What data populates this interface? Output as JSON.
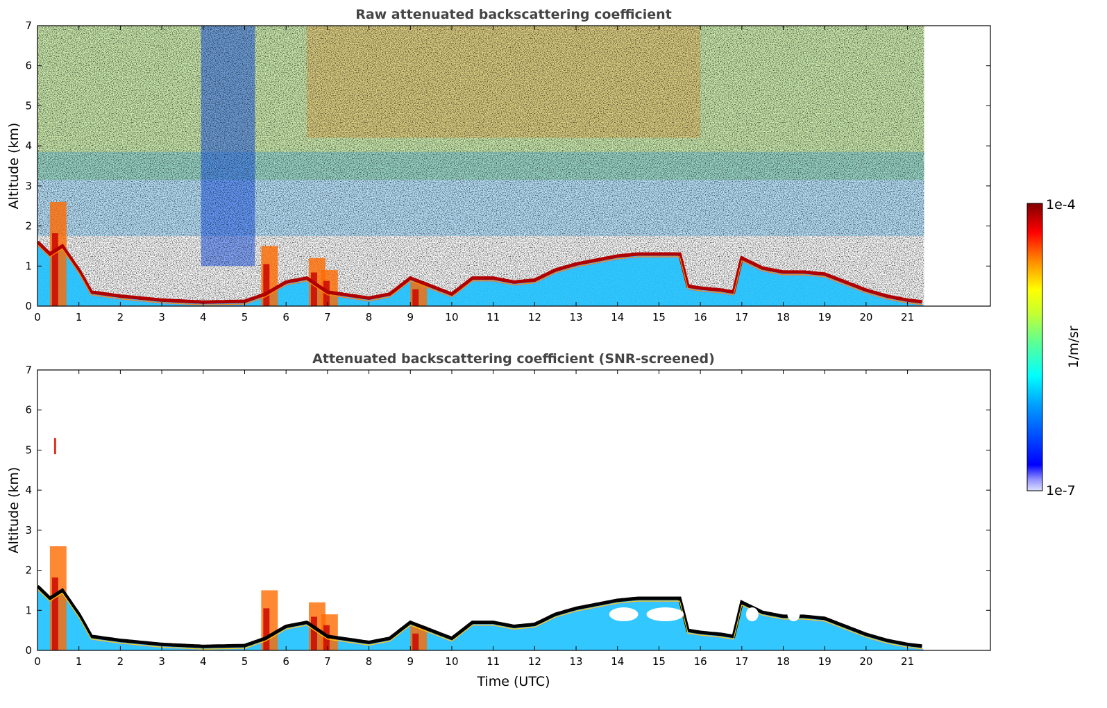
{
  "figure": {
    "colorbar": {
      "max_label": "1e-4",
      "min_label": "1e-7",
      "units_label": "1/m/sr",
      "colormap": "jet",
      "scale": "log",
      "range": [
        1e-07,
        0.0001
      ]
    }
  },
  "chart_data": [
    {
      "type": "heatmap",
      "title": "Raw attenuated backscattering coefficient",
      "xlabel": "",
      "ylabel": "Altitude (km)",
      "xlim": [
        0,
        23
      ],
      "ylim": [
        0,
        7
      ],
      "x_ticks": [
        "0",
        "1",
        "2",
        "3",
        "4",
        "5",
        "6",
        "7",
        "8",
        "9",
        "10",
        "11",
        "12",
        "13",
        "14",
        "15",
        "16",
        "17",
        "18",
        "19",
        "20",
        "21"
      ],
      "y_ticks": [
        "0",
        "1",
        "2",
        "3",
        "4",
        "5",
        "6",
        "7"
      ],
      "data_end_time": 21.4,
      "cloud_base_km": [
        [
          0.0,
          1.6
        ],
        [
          0.3,
          1.3
        ],
        [
          0.6,
          1.5
        ],
        [
          1.0,
          0.9
        ],
        [
          1.3,
          0.35
        ],
        [
          2.0,
          0.25
        ],
        [
          3.0,
          0.15
        ],
        [
          4.0,
          0.1
        ],
        [
          5.0,
          0.12
        ],
        [
          5.5,
          0.3
        ],
        [
          6.0,
          0.6
        ],
        [
          6.5,
          0.7
        ],
        [
          7.0,
          0.35
        ],
        [
          8.0,
          0.2
        ],
        [
          8.5,
          0.3
        ],
        [
          9.0,
          0.7
        ],
        [
          9.5,
          0.5
        ],
        [
          10.0,
          0.3
        ],
        [
          10.5,
          0.7
        ],
        [
          11.0,
          0.7
        ],
        [
          11.5,
          0.6
        ],
        [
          12.0,
          0.65
        ],
        [
          12.5,
          0.9
        ],
        [
          13.0,
          1.05
        ],
        [
          13.5,
          1.15
        ],
        [
          14.0,
          1.25
        ],
        [
          14.5,
          1.3
        ],
        [
          15.0,
          1.3
        ],
        [
          15.5,
          1.3
        ],
        [
          15.7,
          0.5
        ],
        [
          16.0,
          0.45
        ],
        [
          16.5,
          0.4
        ],
        [
          16.8,
          0.35
        ],
        [
          17.0,
          1.2
        ],
        [
          17.5,
          0.95
        ],
        [
          18.0,
          0.85
        ],
        [
          18.5,
          0.85
        ],
        [
          19.0,
          0.8
        ],
        [
          19.5,
          0.6
        ],
        [
          20.0,
          0.4
        ],
        [
          20.5,
          0.25
        ],
        [
          21.0,
          0.15
        ],
        [
          21.4,
          0.1
        ]
      ]
    },
    {
      "type": "heatmap",
      "title": "Attenuated backscattering coefficient (SNR-screened)",
      "xlabel": "Time (UTC)",
      "ylabel": "Altitude (km)",
      "xlim": [
        0,
        23
      ],
      "ylim": [
        0,
        7
      ],
      "x_ticks": [
        "0",
        "1",
        "2",
        "3",
        "4",
        "5",
        "6",
        "7",
        "8",
        "9",
        "10",
        "11",
        "12",
        "13",
        "14",
        "15",
        "16",
        "17",
        "18",
        "19",
        "20",
        "21"
      ],
      "y_ticks": [
        "0",
        "1",
        "2",
        "3",
        "4",
        "5",
        "6",
        "7"
      ],
      "data_end_time": 21.4
    }
  ]
}
